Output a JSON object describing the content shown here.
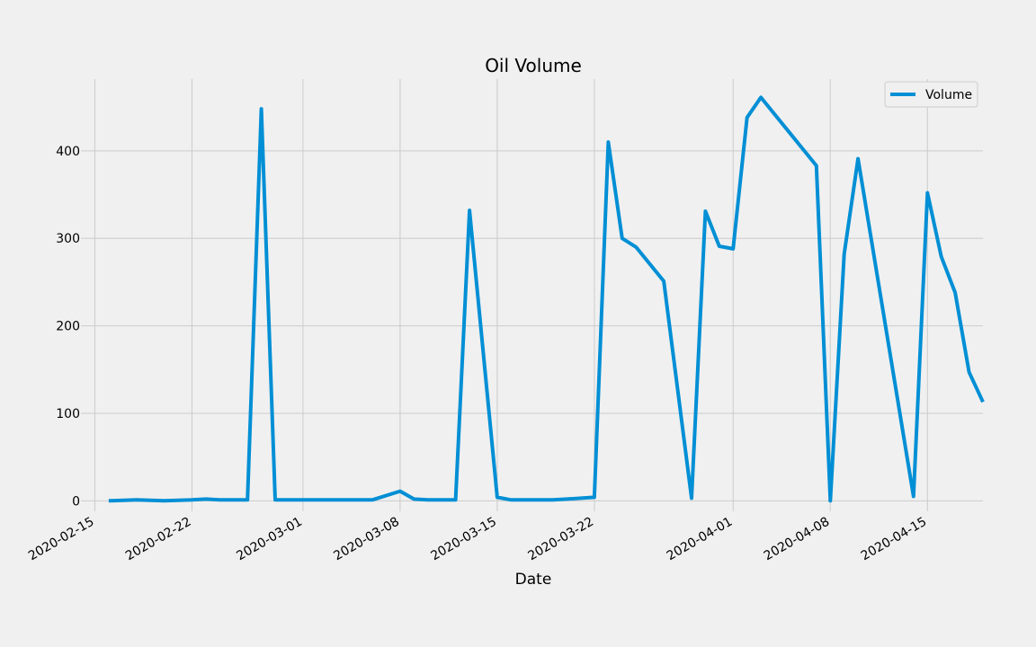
{
  "chart_data": {
    "type": "line",
    "title": "Oil Volume",
    "xlabel": "Date",
    "ylabel": "",
    "grid": true,
    "legend_position": "top-right",
    "xlim": [
      "2020-02-14",
      "2020-04-19"
    ],
    "ylim": [
      -12,
      482
    ],
    "x_ticks": [
      "2020-02-15",
      "2020-02-22",
      "2020-03-01",
      "2020-03-08",
      "2020-03-15",
      "2020-03-22",
      "2020-04-01",
      "2020-04-08",
      "2020-04-15"
    ],
    "y_ticks": [
      0,
      100,
      200,
      300,
      400
    ],
    "series": [
      {
        "name": "Volume",
        "color": "#008fd5",
        "x": [
          "2020-02-16",
          "2020-02-18",
          "2020-02-20",
          "2020-02-22",
          "2020-02-23",
          "2020-02-24",
          "2020-02-26",
          "2020-02-27",
          "2020-02-28",
          "2020-03-02",
          "2020-03-04",
          "2020-03-06",
          "2020-03-08",
          "2020-03-09",
          "2020-03-10",
          "2020-03-12",
          "2020-03-13",
          "2020-03-15",
          "2020-03-16",
          "2020-03-17",
          "2020-03-19",
          "2020-03-20",
          "2020-03-22",
          "2020-03-23",
          "2020-03-24",
          "2020-03-25",
          "2020-03-27",
          "2020-03-29",
          "2020-03-30",
          "2020-03-31",
          "2020-04-01",
          "2020-04-02",
          "2020-04-03",
          "2020-04-07",
          "2020-04-08",
          "2020-04-09",
          "2020-04-10",
          "2020-04-14",
          "2020-04-15",
          "2020-04-16",
          "2020-04-17",
          "2020-04-18",
          "2020-04-19"
        ],
        "values": [
          0,
          1,
          0,
          1,
          2,
          1,
          1,
          448,
          1,
          1,
          1,
          1,
          11,
          2,
          1,
          1,
          332,
          4,
          1,
          1,
          1,
          2,
          4,
          410,
          300,
          290,
          251,
          3,
          331,
          291,
          288,
          438,
          461,
          383,
          0,
          282,
          391,
          5,
          352,
          279,
          238,
          147,
          113
        ]
      }
    ]
  }
}
